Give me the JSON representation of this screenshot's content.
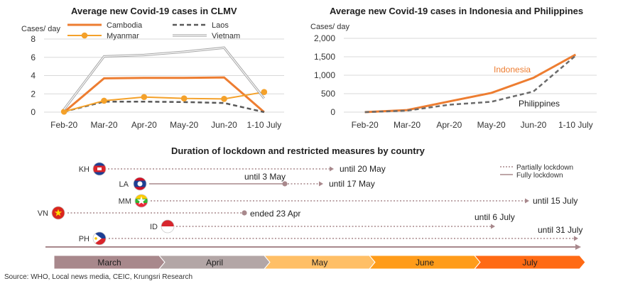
{
  "chart_data": [
    {
      "type": "line",
      "title": "Average new Covid-19 cases in CLMV",
      "ylabel": "Cases/ day",
      "categories": [
        "Feb-20",
        "Mar-20",
        "Apr-20",
        "May-20",
        "Jun-20",
        "1-10 July"
      ],
      "ylim": [
        0,
        8
      ],
      "yticks": [
        0,
        2,
        4,
        6,
        8
      ],
      "legend": "top",
      "grid": true,
      "series": [
        {
          "name": "Cambodia",
          "values": [
            0.0,
            3.7,
            3.75,
            3.75,
            3.8,
            0.0
          ],
          "color": "#ED7D31",
          "style": "solid"
        },
        {
          "name": "Laos",
          "values": [
            0.05,
            1.15,
            1.15,
            1.1,
            1.0,
            0.0
          ],
          "color": "#595959",
          "style": "dashed"
        },
        {
          "name": "Myanmar",
          "values": [
            0.05,
            1.25,
            1.65,
            1.5,
            1.45,
            2.2
          ],
          "color": "#F4A12A",
          "style": "marker"
        },
        {
          "name": "Vietnam",
          "values": [
            0.3,
            6.1,
            6.25,
            6.6,
            7.05,
            1.5
          ],
          "color": "#BFBFBF",
          "style": "double"
        }
      ]
    },
    {
      "type": "line",
      "title": "Average new Covid-19 cases in Indonesia and Philippines",
      "ylabel": "Cases/ day",
      "categories": [
        "Feb-20",
        "Mar-20",
        "Apr-20",
        "May-20",
        "Jun-20",
        "1-10 July"
      ],
      "ylim": [
        0,
        2000
      ],
      "yticks": [
        "0",
        "500",
        "1,000",
        "1,500",
        "2,000"
      ],
      "ytick_values": [
        0,
        500,
        1000,
        1500,
        2000
      ],
      "grid": true,
      "series": [
        {
          "name": "Indonesia",
          "values": [
            0,
            55,
            290,
            520,
            930,
            1560
          ],
          "color": "#ED7D31",
          "style": "solid",
          "label_color": "#ED7D31"
        },
        {
          "name": "Philippines",
          "values": [
            0,
            40,
            200,
            280,
            560,
            1530
          ],
          "color": "#6B6B6B",
          "style": "dashed",
          "label_color": "#1f1f1f"
        }
      ]
    }
  ],
  "timeline": {
    "title": "Duration of lockdown and restricted measures by country",
    "legend": {
      "partial": "Partially lockdown",
      "full": "Fully lockdown"
    },
    "months": [
      {
        "label": "March",
        "color": "#A8888C"
      },
      {
        "label": "April",
        "color": "#B3A6A6"
      },
      {
        "label": "May",
        "color": "#FFBF66"
      },
      {
        "label": "June",
        "color": "#FF9C1A"
      },
      {
        "label": "July",
        "color": "#FF6A14"
      }
    ],
    "countries": [
      {
        "code": "KH",
        "flag": "cambodia",
        "label": "until 20 May"
      },
      {
        "code": "LA",
        "flag": "laos",
        "label_full": "until 3 May",
        "label": "until 17 May"
      },
      {
        "code": "MM",
        "flag": "myanmar",
        "label": "until 15 July"
      },
      {
        "code": "VN",
        "flag": "vietnam",
        "label": "ended 23 Apr"
      },
      {
        "code": "ID",
        "flag": "indonesia",
        "label": "until 6 July"
      },
      {
        "code": "PH",
        "flag": "philippines",
        "label": "until 31 July"
      }
    ]
  },
  "source": "Source: WHO, Local news media, CEIC, Krungsri Research"
}
